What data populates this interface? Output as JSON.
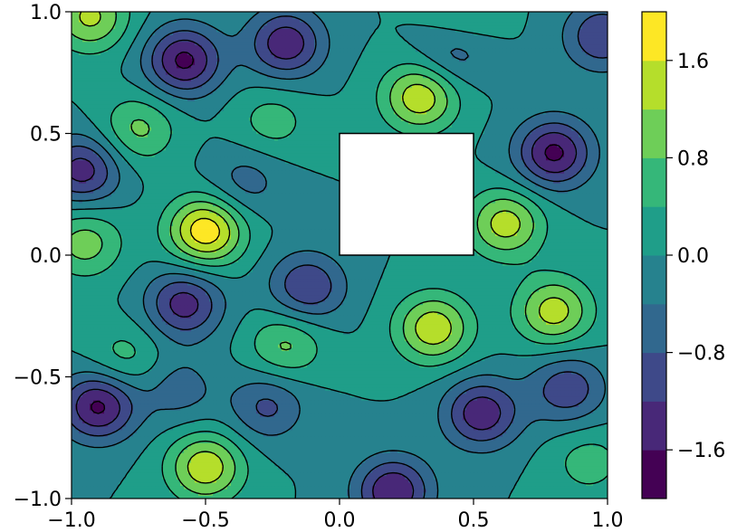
{
  "chart_data": {
    "type": "heatmap",
    "subtype": "filled-contour",
    "title": "",
    "xlabel": "",
    "ylabel": "",
    "xlim": [
      -1.0,
      1.0
    ],
    "ylim": [
      -1.0,
      1.0
    ],
    "x_ticks": [
      "−1.0",
      "−0.5",
      "0.0",
      "0.5",
      "1.0"
    ],
    "x_tick_values": [
      -1.0,
      -0.5,
      0.0,
      0.5,
      1.0
    ],
    "y_ticks": [
      "−1.0",
      "−0.5",
      "0.0",
      "0.5",
      "1.0"
    ],
    "y_tick_values": [
      -1.0,
      -0.5,
      0.0,
      0.5,
      1.0
    ],
    "colorbar": {
      "colormap": "viridis",
      "levels": [
        -2.0,
        -1.6,
        -1.2,
        -0.8,
        -0.4,
        0.0,
        0.4,
        0.8,
        1.2,
        1.6,
        2.0
      ],
      "colors": [
        "#440154",
        "#482878",
        "#3e4989",
        "#31688e",
        "#26828e",
        "#1f9e89",
        "#35b779",
        "#6ece58",
        "#b5de2b",
        "#fde725"
      ],
      "tick_values": [
        -1.6,
        -0.8,
        0.0,
        0.8,
        1.6
      ],
      "tick_labels": [
        "−1.6",
        "−0.8",
        "0.0",
        "0.8",
        "1.6"
      ]
    },
    "masked_region": {
      "x": [
        0.0,
        0.5
      ],
      "y": [
        0.0,
        0.5
      ]
    },
    "contour_line_color": "#000000",
    "grid": false,
    "extrema": [
      {
        "x": -0.5,
        "y": 0.1,
        "value": 1.9
      },
      {
        "x": 0.3,
        "y": 0.65,
        "value": 1.5
      },
      {
        "x": 0.35,
        "y": -0.3,
        "value": 1.5
      },
      {
        "x": -0.5,
        "y": -0.87,
        "value": 1.5
      },
      {
        "x": 0.8,
        "y": -0.23,
        "value": 1.4
      },
      {
        "x": 0.62,
        "y": 0.13,
        "value": 1.4
      },
      {
        "x": -0.93,
        "y": 0.98,
        "value": 1.3
      },
      {
        "x": -0.2,
        "y": -0.37,
        "value": 0.9
      },
      {
        "x": -0.75,
        "y": 0.52,
        "value": 0.9
      },
      {
        "x": -0.25,
        "y": 0.55,
        "value": 0.6
      },
      {
        "x": -0.8,
        "y": -0.42,
        "value": 0.6
      },
      {
        "x": -0.95,
        "y": 0.05,
        "value": 1.0
      },
      {
        "x": 0.45,
        "y": 0.95,
        "value": 0.7
      },
      {
        "x": 0.93,
        "y": -0.85,
        "value": 0.6
      },
      {
        "x": -0.58,
        "y": 0.8,
        "value": -1.7
      },
      {
        "x": -0.2,
        "y": 0.87,
        "value": -1.5
      },
      {
        "x": 0.8,
        "y": 0.42,
        "value": -1.7
      },
      {
        "x": -0.9,
        "y": -0.62,
        "value": -1.7
      },
      {
        "x": 0.53,
        "y": -0.65,
        "value": -1.5
      },
      {
        "x": -0.96,
        "y": 0.35,
        "value": -1.4
      },
      {
        "x": -0.12,
        "y": -0.13,
        "value": -1.2
      },
      {
        "x": -0.58,
        "y": -0.2,
        "value": -1.4
      },
      {
        "x": 0.2,
        "y": -0.97,
        "value": -1.6
      },
      {
        "x": 0.85,
        "y": -0.55,
        "value": -1.1
      },
      {
        "x": 0.43,
        "y": 0.85,
        "value": -0.9
      },
      {
        "x": 0.98,
        "y": 0.9,
        "value": -1.2
      },
      {
        "x": -0.27,
        "y": -0.62,
        "value": -0.9
      },
      {
        "x": -0.35,
        "y": 0.3,
        "value": -0.6
      },
      {
        "x": -0.6,
        "y": -0.55,
        "value": -0.6
      }
    ]
  }
}
